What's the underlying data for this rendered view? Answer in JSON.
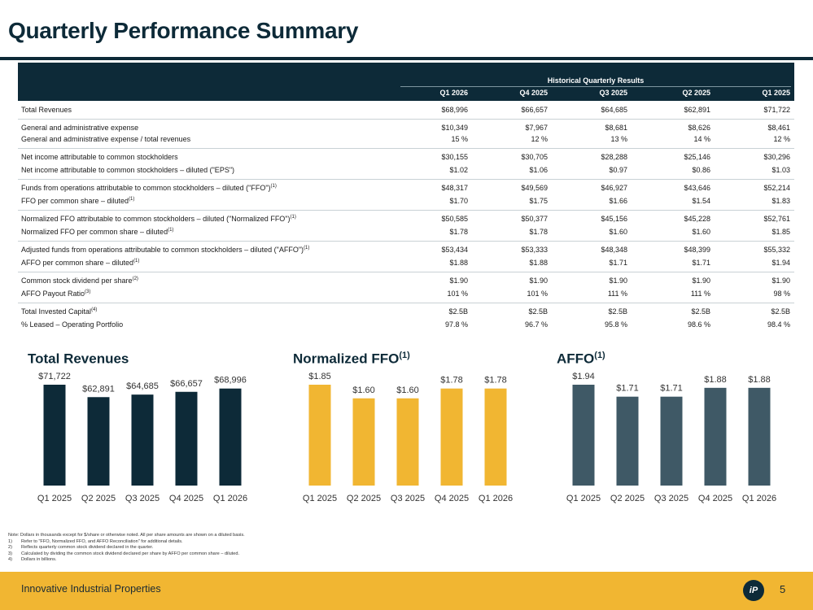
{
  "title": "Quarterly Performance Summary",
  "table": {
    "group_header": "Historical Quarterly Results",
    "columns": [
      "Q1 2026",
      "Q4 2025",
      "Q3 2025",
      "Q2 2025",
      "Q1 2025"
    ],
    "rows": [
      {
        "label": "Total Revenues",
        "sup": "",
        "values": [
          "$68,996",
          "$66,657",
          "$64,685",
          "$62,891",
          "$71,722"
        ]
      },
      {
        "label": "General and administrative expense",
        "sup": "",
        "values": [
          "$10,349",
          "$7,967",
          "$8,681",
          "$8,626",
          "$8,461"
        ]
      },
      {
        "label": "General and administrative expense / total revenues",
        "sup": "",
        "values": [
          "15 %",
          "12 %",
          "13 %",
          "14 %",
          "12 %"
        ]
      },
      {
        "label": "Net income attributable to common stockholders",
        "sup": "",
        "values": [
          "$30,155",
          "$30,705",
          "$28,288",
          "$25,146",
          "$30,296"
        ]
      },
      {
        "label": "Net income attributable to common stockholders – diluted (\"EPS\")",
        "sup": "",
        "values": [
          "$1.02",
          "$1.06",
          "$0.97",
          "$0.86",
          "$1.03"
        ]
      },
      {
        "label": "Funds from operations attributable to common stockholders – diluted (\"FFO\")",
        "sup": "(1)",
        "values": [
          "$48,317",
          "$49,569",
          "$46,927",
          "$43,646",
          "$52,214"
        ]
      },
      {
        "label": "FFO per common share – diluted",
        "sup": "(1)",
        "values": [
          "$1.70",
          "$1.75",
          "$1.66",
          "$1.54",
          "$1.83"
        ]
      },
      {
        "label": "Normalized FFO attributable to common stockholders – diluted (\"Normalized FFO\")",
        "sup": "(1)",
        "values": [
          "$50,585",
          "$50,377",
          "$45,156",
          "$45,228",
          "$52,761"
        ]
      },
      {
        "label": "Normalized FFO per common share – diluted",
        "sup": "(1)",
        "values": [
          "$1.78",
          "$1.78",
          "$1.60",
          "$1.60",
          "$1.85"
        ]
      },
      {
        "label": "Adjusted funds from operations attributable to common stockholders – diluted (\"AFFO\")",
        "sup": "(1)",
        "values": [
          "$53,434",
          "$53,333",
          "$48,348",
          "$48,399",
          "$55,332"
        ]
      },
      {
        "label": "AFFO per common share – diluted",
        "sup": "(1)",
        "values": [
          "$1.88",
          "$1.88",
          "$1.71",
          "$1.71",
          "$1.94"
        ]
      },
      {
        "label": "Common stock dividend per share",
        "sup": "(2)",
        "values": [
          "$1.90",
          "$1.90",
          "$1.90",
          "$1.90",
          "$1.90"
        ]
      },
      {
        "label": "AFFO Payout Ratio",
        "sup": "(3)",
        "values": [
          "101 %",
          "101 %",
          "111 %",
          "111 %",
          "98 %"
        ]
      },
      {
        "label": "Total Invested Capital",
        "sup": "(4)",
        "values": [
          "$2.5B",
          "$2.5B",
          "$2.5B",
          "$2.5B",
          "$2.5B"
        ]
      },
      {
        "label": "% Leased – Operating Portfolio",
        "sup": "",
        "values": [
          "97.8 %",
          "96.7 %",
          "95.8 %",
          "98.6 %",
          "98.4 %"
        ]
      }
    ]
  },
  "chart_data": [
    {
      "type": "bar",
      "title": "Total Revenues",
      "title_sup": "",
      "categories": [
        "Q1 2025",
        "Q2 2025",
        "Q3 2025",
        "Q4 2025",
        "Q1 2026"
      ],
      "values": [
        71722,
        62891,
        64685,
        66657,
        68996
      ],
      "labels": [
        "$71,722",
        "$62,891",
        "$64,685",
        "$66,657",
        "$68,996"
      ],
      "color": "#0d2a38"
    },
    {
      "type": "bar",
      "title": "Normalized FFO",
      "title_sup": "(1)",
      "categories": [
        "Q1 2025",
        "Q2 2025",
        "Q3 2025",
        "Q4 2025",
        "Q1 2026"
      ],
      "values": [
        1.85,
        1.6,
        1.6,
        1.78,
        1.78
      ],
      "labels": [
        "$1.85",
        "$1.60",
        "$1.60",
        "$1.78",
        "$1.78"
      ],
      "color": "#f1b632"
    },
    {
      "type": "bar",
      "title": "AFFO",
      "title_sup": "(1)",
      "categories": [
        "Q1 2025",
        "Q2 2025",
        "Q3 2025",
        "Q4 2025",
        "Q1 2026"
      ],
      "values": [
        1.94,
        1.71,
        1.71,
        1.88,
        1.88
      ],
      "labels": [
        "$1.94",
        "$1.71",
        "$1.71",
        "$1.88",
        "$1.88"
      ],
      "color": "#3f5966"
    }
  ],
  "notes": {
    "intro": "Note: Dollars in thousands except for $/share or otherwise noted. All per share amounts are shown on a diluted basis.",
    "items": [
      {
        "num": "1)",
        "text": "Refer to \"FFO, Normalized FFO, and AFFO Reconciliation\" for additional details."
      },
      {
        "num": "2)",
        "text": "Reflects quarterly common stock dividend declared in the quarter."
      },
      {
        "num": "3)",
        "text": "Calculated by dividing the common stock dividend declared per share by AFFO per common share – diluted."
      },
      {
        "num": "4)",
        "text": "Dollars in billions."
      }
    ]
  },
  "footer": {
    "company": "Innovative Industrial Properties",
    "logo_text": "iP",
    "page": "5"
  },
  "colors": {
    "navy": "#0d2a38",
    "gold": "#f1b632",
    "slate": "#3f5966"
  }
}
